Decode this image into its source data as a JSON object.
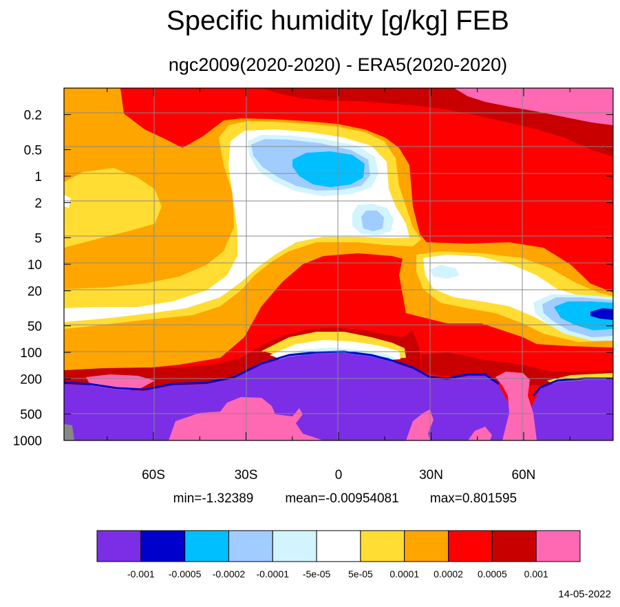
{
  "chart_data": {
    "type": "heatmap",
    "title": "Specific humidity [g/kg] FEB",
    "subtitle": "ngc2009(2020-2020) - ERA5(2020-2020)",
    "x_ticks": [
      "60S",
      "30S",
      "0",
      "30N",
      "60N"
    ],
    "x_tick_values": [
      -60,
      -30,
      0,
      30,
      60
    ],
    "xlim": [
      -89,
      89
    ],
    "y_ticks": [
      "0.2",
      "0.5",
      "1",
      "2",
      "5",
      "10",
      "20",
      "50",
      "100",
      "200",
      "500",
      "1000"
    ],
    "y_tick_values": [
      0.2,
      0.5,
      1,
      2,
      5,
      10,
      20,
      50,
      100,
      200,
      500,
      1000
    ],
    "ylim": [
      0.1,
      1000
    ],
    "y_scale": "log",
    "y_reversed": true,
    "grid": true,
    "stats": {
      "min": "min=-1.32389",
      "mean": "mean=-0.00954081",
      "max": "max=0.801595"
    },
    "colorbar": {
      "colors": [
        "#7b2ee6",
        "#0000cd",
        "#00bfff",
        "#a0ccff",
        "#d2f4ff",
        "#ffffff",
        "#ffdd33",
        "#ffa500",
        "#ff0000",
        "#c80000",
        "#ff69b4"
      ],
      "labels": [
        "-0.001",
        "-0.0005",
        "-0.0002",
        "-0.0001",
        "-5e-05",
        "5e-05",
        "0.0001",
        "0.0002",
        "0.0005",
        "0.001"
      ]
    },
    "date": "14-05-2022"
  }
}
